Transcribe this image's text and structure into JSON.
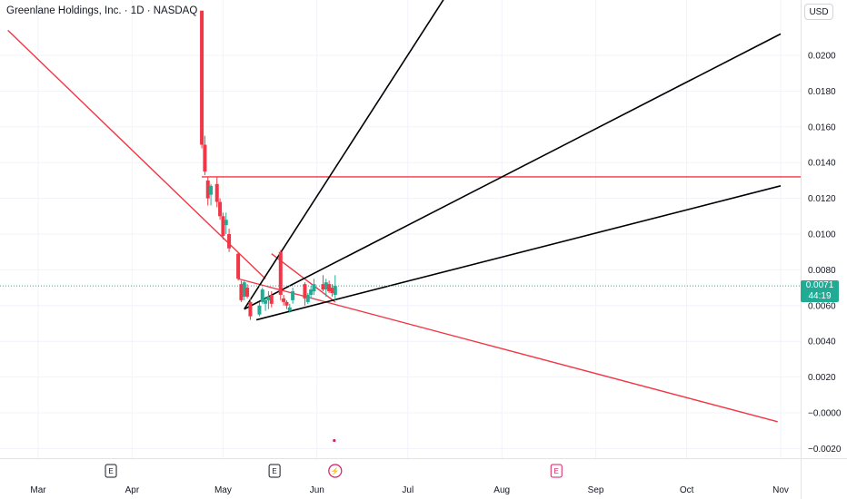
{
  "title": "Greenlane Holdings, Inc. · 1D · NASDAQ",
  "currency": "USD",
  "last_price": "0.0071",
  "countdown": "44:19",
  "colors": {
    "up": "#22ab94",
    "down": "#f23645",
    "red_line": "#f23645",
    "black_line": "#000000",
    "event_magenta": "#d81b60"
  },
  "chart_data": {
    "type": "candlestick",
    "yticks": [
      "0.0200",
      "0.0180",
      "0.0160",
      "0.0140",
      "0.0120",
      "0.0100",
      "0.0080",
      "0.0060",
      "0.0040",
      "0.0020",
      "−0.0000",
      "−0.0020"
    ],
    "ytick_values": [
      0.02,
      0.018,
      0.016,
      0.014,
      0.012,
      0.01,
      0.008,
      0.006,
      0.004,
      0.002,
      0.0,
      -0.002
    ],
    "ylim": [
      -0.0028,
      0.0225
    ],
    "xticks": [
      "Mar",
      "Apr",
      "May",
      "Jun",
      "Jul",
      "Aug",
      "Sep",
      "Oct",
      "Nov"
    ],
    "xtick_dates": [
      "2024-03-01",
      "2024-04-01",
      "2024-05-01",
      "2024-06-01",
      "2024-07-01",
      "2024-08-01",
      "2024-09-01",
      "2024-10-01",
      "2024-11-01"
    ],
    "candles": [
      {
        "date": "2024-04-24",
        "open": 0.0225,
        "high": 0.0225,
        "low": 0.0148,
        "close": 0.015
      },
      {
        "date": "2024-04-25",
        "open": 0.015,
        "high": 0.0155,
        "low": 0.0133,
        "close": 0.0135
      },
      {
        "date": "2024-04-26",
        "open": 0.013,
        "high": 0.0132,
        "low": 0.0116,
        "close": 0.012
      },
      {
        "date": "2024-04-27",
        "open": 0.0122,
        "high": 0.0128,
        "low": 0.0116,
        "close": 0.0127
      },
      {
        "date": "2024-04-29",
        "open": 0.0128,
        "high": 0.0132,
        "low": 0.0115,
        "close": 0.0118
      },
      {
        "date": "2024-04-30",
        "open": 0.0118,
        "high": 0.012,
        "low": 0.0108,
        "close": 0.011
      },
      {
        "date": "2024-05-01",
        "open": 0.011,
        "high": 0.0112,
        "low": 0.0097,
        "close": 0.0099
      },
      {
        "date": "2024-05-02",
        "open": 0.0105,
        "high": 0.0112,
        "low": 0.01,
        "close": 0.0108
      },
      {
        "date": "2024-05-03",
        "open": 0.01,
        "high": 0.0103,
        "low": 0.009,
        "close": 0.0092
      },
      {
        "date": "2024-05-06",
        "open": 0.0089,
        "high": 0.009,
        "low": 0.0074,
        "close": 0.0075
      },
      {
        "date": "2024-05-07",
        "open": 0.0072,
        "high": 0.0074,
        "low": 0.0062,
        "close": 0.0063
      },
      {
        "date": "2024-05-08",
        "open": 0.0065,
        "high": 0.0074,
        "low": 0.0063,
        "close": 0.0073
      },
      {
        "date": "2024-05-09",
        "open": 0.007,
        "high": 0.0072,
        "low": 0.0064,
        "close": 0.0065
      },
      {
        "date": "2024-05-10",
        "open": 0.0062,
        "high": 0.0064,
        "low": 0.0052,
        "close": 0.0054
      },
      {
        "date": "2024-05-13",
        "open": 0.0055,
        "high": 0.0062,
        "low": 0.0054,
        "close": 0.006
      },
      {
        "date": "2024-05-14",
        "open": 0.0062,
        "high": 0.007,
        "low": 0.0061,
        "close": 0.0069
      },
      {
        "date": "2024-05-15",
        "open": 0.0061,
        "high": 0.0065,
        "low": 0.0057,
        "close": 0.0063
      },
      {
        "date": "2024-05-16",
        "open": 0.0063,
        "high": 0.0068,
        "low": 0.0058,
        "close": 0.0065
      },
      {
        "date": "2024-05-17",
        "open": 0.0066,
        "high": 0.0068,
        "low": 0.0059,
        "close": 0.0061
      },
      {
        "date": "2024-05-20",
        "open": 0.009,
        "high": 0.0091,
        "low": 0.0063,
        "close": 0.0066
      },
      {
        "date": "2024-05-21",
        "open": 0.0064,
        "high": 0.0066,
        "low": 0.006,
        "close": 0.0062
      },
      {
        "date": "2024-05-22",
        "open": 0.0062,
        "high": 0.0063,
        "low": 0.0058,
        "close": 0.006
      },
      {
        "date": "2024-05-23",
        "open": 0.0057,
        "high": 0.0061,
        "low": 0.0056,
        "close": 0.0059
      },
      {
        "date": "2024-05-24",
        "open": 0.0063,
        "high": 0.007,
        "low": 0.0061,
        "close": 0.0068
      },
      {
        "date": "2024-05-28",
        "open": 0.0072,
        "high": 0.0073,
        "low": 0.006,
        "close": 0.0064
      },
      {
        "date": "2024-05-29",
        "open": 0.0062,
        "high": 0.0067,
        "low": 0.0061,
        "close": 0.0066
      },
      {
        "date": "2024-05-30",
        "open": 0.0066,
        "high": 0.0071,
        "low": 0.0064,
        "close": 0.0069
      },
      {
        "date": "2024-05-31",
        "open": 0.0068,
        "high": 0.0075,
        "low": 0.0066,
        "close": 0.0072
      },
      {
        "date": "2024-06-03",
        "open": 0.0072,
        "high": 0.0077,
        "low": 0.0068,
        "close": 0.0069
      },
      {
        "date": "2024-06-04",
        "open": 0.0069,
        "high": 0.0075,
        "low": 0.0065,
        "close": 0.0073
      },
      {
        "date": "2024-06-05",
        "open": 0.0072,
        "high": 0.0074,
        "low": 0.0067,
        "close": 0.0068
      },
      {
        "date": "2024-06-06",
        "open": 0.007,
        "high": 0.0072,
        "low": 0.0065,
        "close": 0.0067
      },
      {
        "date": "2024-06-07",
        "open": 0.0066,
        "high": 0.0077,
        "low": 0.0063,
        "close": 0.0071
      }
    ],
    "last_price_value": 0.0071,
    "drawings": {
      "red_lines": [
        {
          "from": [
            "2024-02-20",
            0.0214
          ],
          "to": [
            "2024-05-15",
            0.0075
          ]
        },
        {
          "from": [
            "2024-05-06",
            0.0075
          ],
          "to": [
            "2024-10-31",
            -0.0005
          ]
        },
        {
          "from": [
            "2024-05-17",
            0.0089
          ],
          "to": [
            "2024-06-07",
            0.0062
          ]
        }
      ],
      "horizontal_red": {
        "from": "2024-04-24",
        "to": "2024-11-01",
        "value": 0.0132
      },
      "black_fan": [
        {
          "from": [
            "2024-05-08",
            0.0058
          ],
          "to": [
            "2024-07-18",
            0.0245
          ]
        },
        {
          "from": [
            "2024-05-08",
            0.0058
          ],
          "to": [
            "2024-11-01",
            0.0212
          ]
        },
        {
          "from": [
            "2024-05-12",
            0.0052
          ],
          "to": [
            "2024-11-01",
            0.0127
          ]
        }
      ]
    },
    "events": [
      {
        "type": "earnings",
        "label": "E",
        "date": "2024-03-25"
      },
      {
        "type": "earnings",
        "label": "E",
        "date": "2024-05-18"
      },
      {
        "type": "split",
        "label": "⚡",
        "date": "2024-06-07"
      },
      {
        "type": "earnings",
        "label": "E",
        "date": "2024-08-19"
      }
    ],
    "marker_dot": {
      "date": "2024-06-07",
      "value": -0.0015
    }
  }
}
